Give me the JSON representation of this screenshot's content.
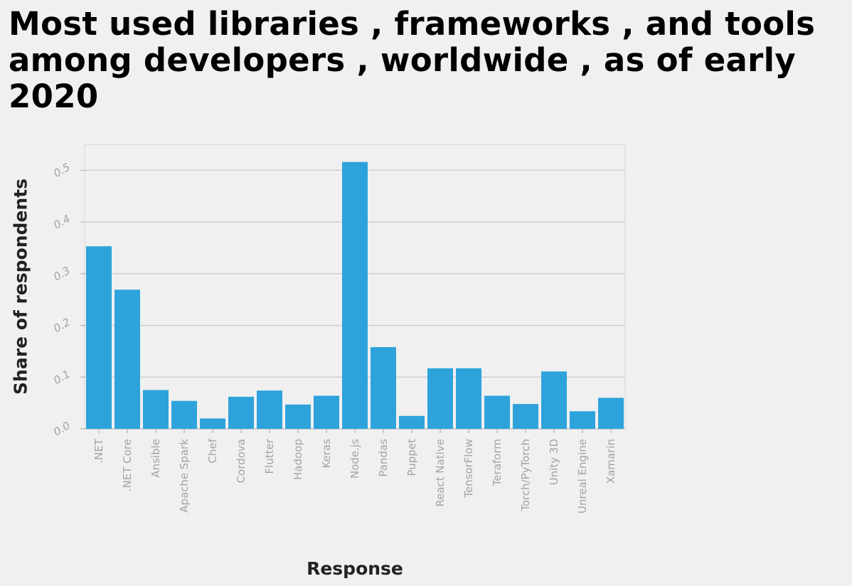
{
  "chart_data": {
    "type": "bar",
    "title": "Most used libraries , frameworks , and tools among developers , worldwide , as of early 2020",
    "xlabel": "Response",
    "ylabel": "Share of respondents",
    "categories": [
      ".NET",
      ".NET Core",
      "Ansible",
      "Apache Spark",
      "Chef",
      "Cordova",
      "Flutter",
      "Hadoop",
      "Keras",
      "Node.js",
      "Pandas",
      "Puppet",
      "React Native",
      "TensorFlow",
      "Teraform",
      "Torch/PyTorch",
      "Unity 3D",
      "Unreal Engine",
      "Xamarin"
    ],
    "values": [
      0.353,
      0.269,
      0.075,
      0.054,
      0.02,
      0.062,
      0.074,
      0.047,
      0.064,
      0.516,
      0.158,
      0.025,
      0.117,
      0.117,
      0.064,
      0.048,
      0.111,
      0.034,
      0.06
    ],
    "yticks": [
      "0.0",
      "0.1",
      "0.2",
      "0.3",
      "0.4",
      "0.5"
    ],
    "ylim": [
      0,
      0.55
    ],
    "grid": true,
    "colors": {
      "bar": "#2ea3db",
      "grid": "#c9c9c9",
      "background": "#f0f0f0"
    }
  }
}
